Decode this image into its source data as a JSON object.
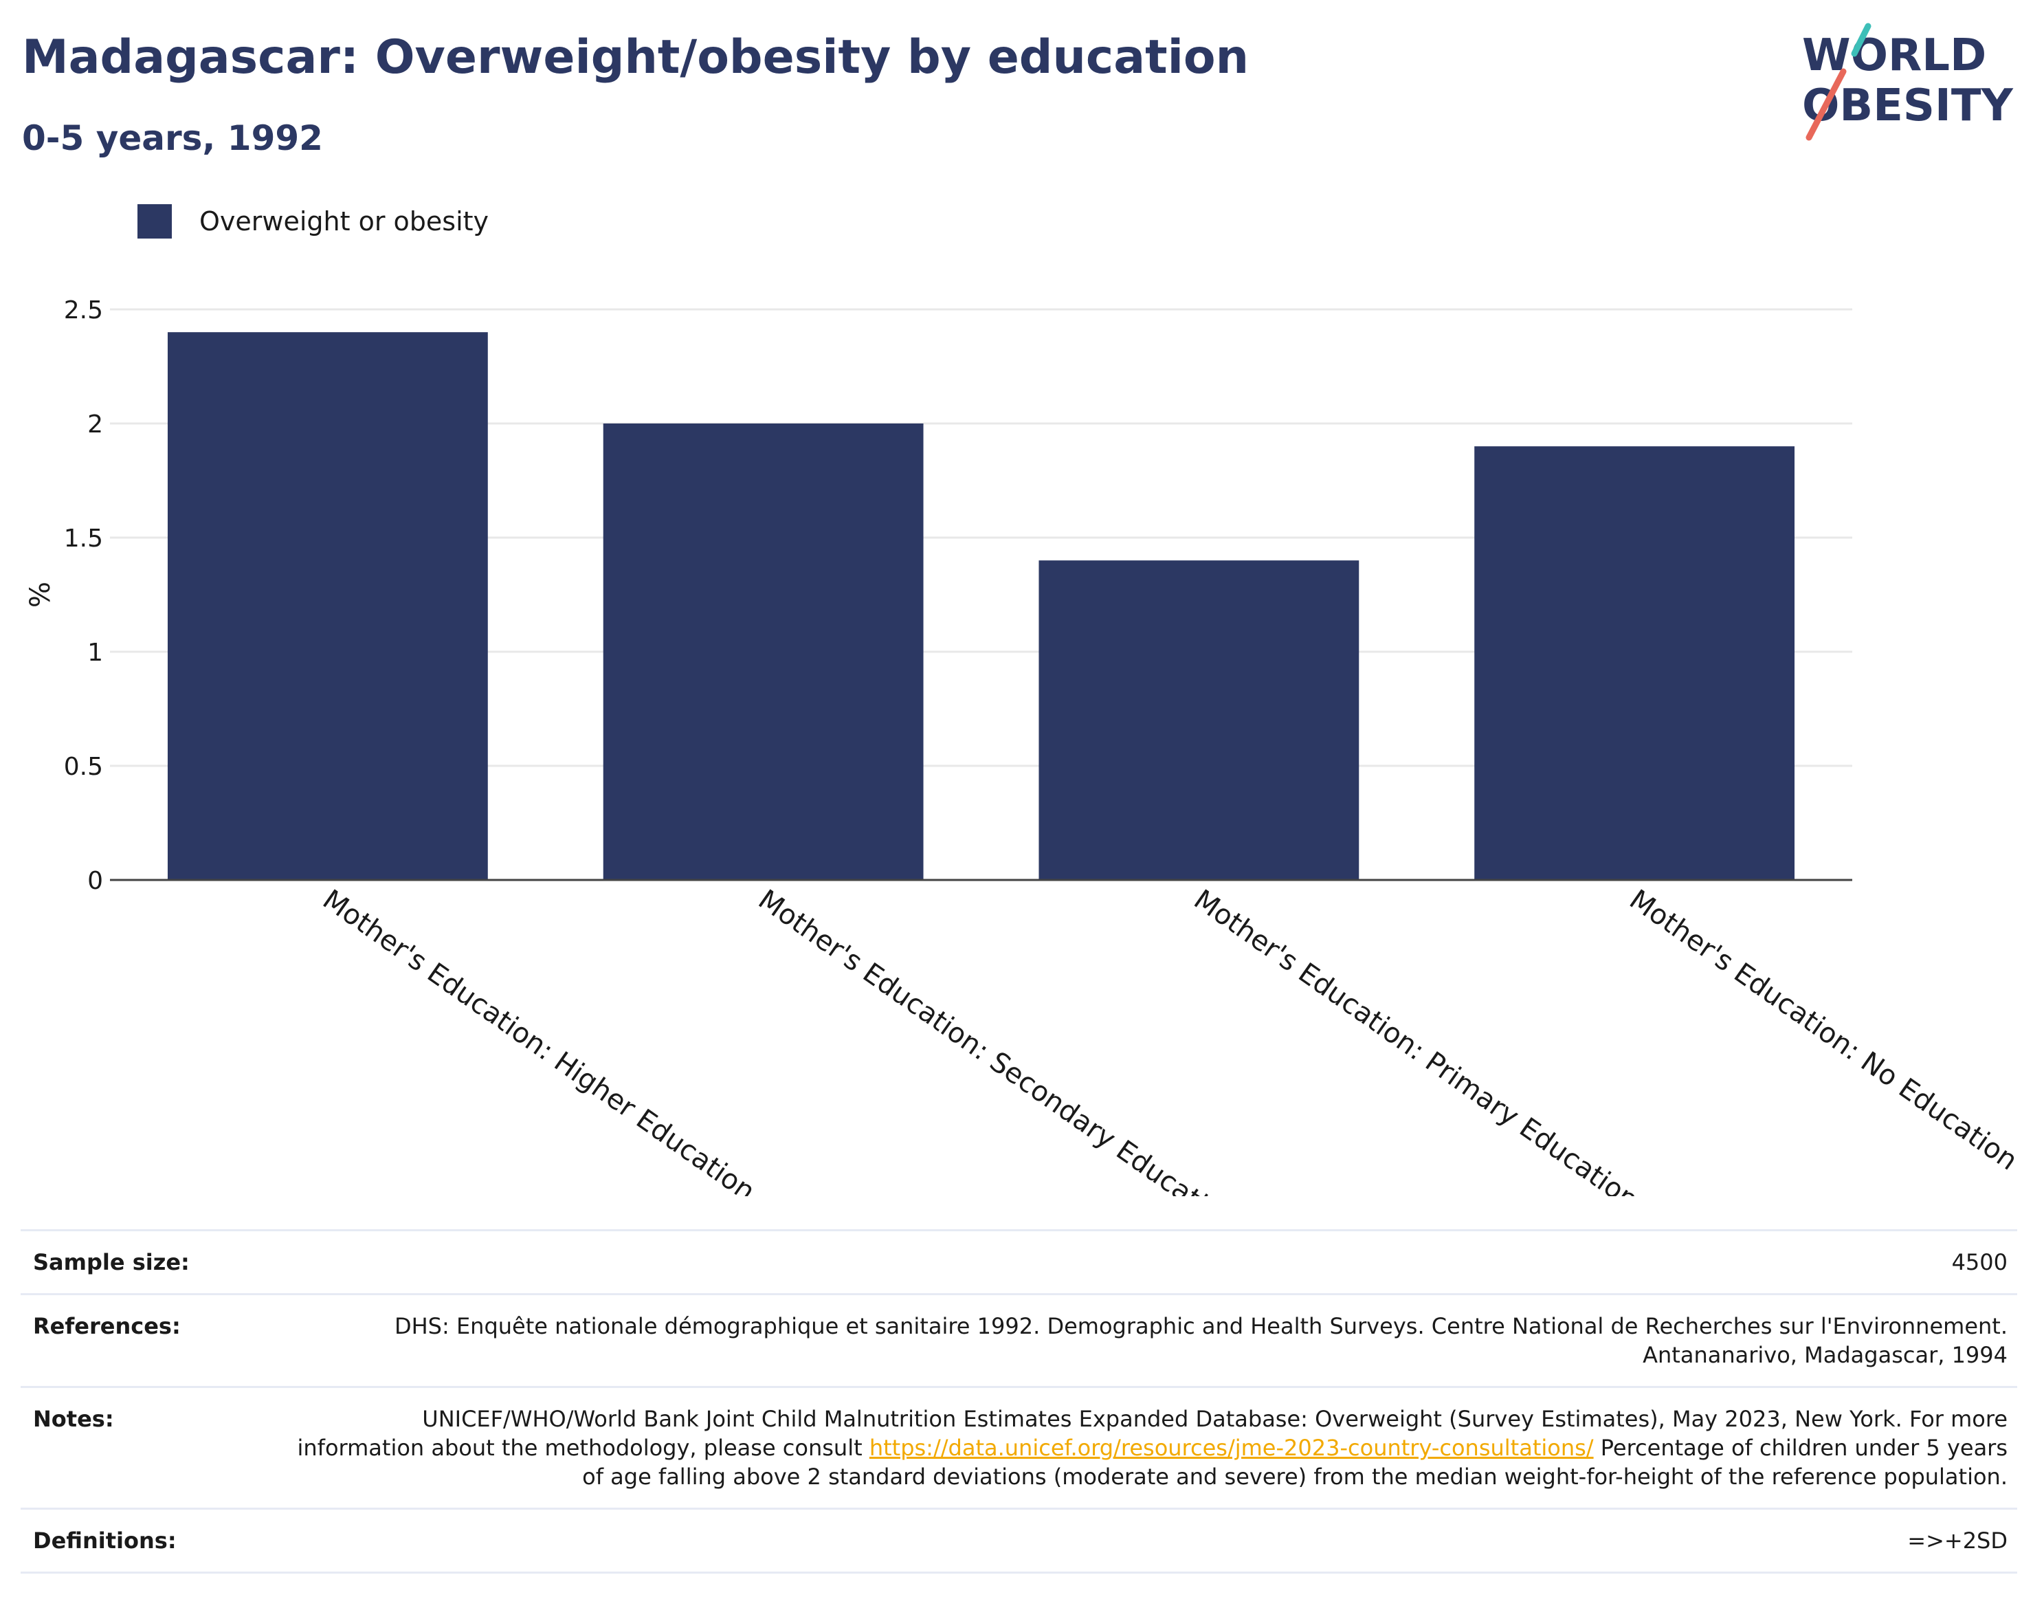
{
  "header": {
    "title": "Madagascar: Overweight/obesity by education",
    "subtitle": "0-5 years, 1992"
  },
  "logo": {
    "line1": "WORLD",
    "line2": "OBESITY",
    "accent_colors": [
      "#3dbfb8",
      "#e8685a"
    ]
  },
  "legend": {
    "label": "Overweight or obesity",
    "color": "#2c3863"
  },
  "chart_data": {
    "type": "bar",
    "categories": [
      "Mother's Education: Higher Education",
      "Mother's Education: Secondary Education",
      "Mother's Education: Primary Education",
      "Mother's Education: No Education"
    ],
    "series": [
      {
        "name": "Overweight or obesity",
        "values": [
          2.4,
          2.0,
          1.4,
          1.9
        ],
        "color": "#2c3863"
      }
    ],
    "ylabel": "%",
    "xlabel": "",
    "ylim": [
      0,
      2.5
    ],
    "yticks": [
      0,
      0.5,
      1,
      1.5,
      2,
      2.5
    ],
    "ytick_labels": [
      "0",
      "0.5",
      "1",
      "1.5",
      "2",
      "2.5"
    ],
    "grid": true,
    "legend_position": "top-left"
  },
  "info": {
    "sample_size": {
      "label": "Sample size:",
      "value": "4500"
    },
    "references": {
      "label": "References:",
      "value": "DHS: Enquête nationale démographique et sanitaire 1992. Demographic and Health Surveys. Centre National de Recherches sur l'Environnement. Antananarivo, Madagascar, 1994"
    },
    "notes": {
      "label": "Notes:",
      "text_before": "UNICEF/WHO/World Bank Joint Child Malnutrition Estimates Expanded Database: Overweight (Survey Estimates), May 2023, New York. For more information about the methodology, please consult ",
      "link": "https://data.unicef.org/resources/jme-2023-country-consultations/",
      "text_after": " Percentage of children under 5 years of age falling above 2 standard deviations (moderate and severe) from the median weight-for-height of the reference population."
    },
    "definitions": {
      "label": "Definitions:",
      "value": "=>+2SD"
    }
  }
}
